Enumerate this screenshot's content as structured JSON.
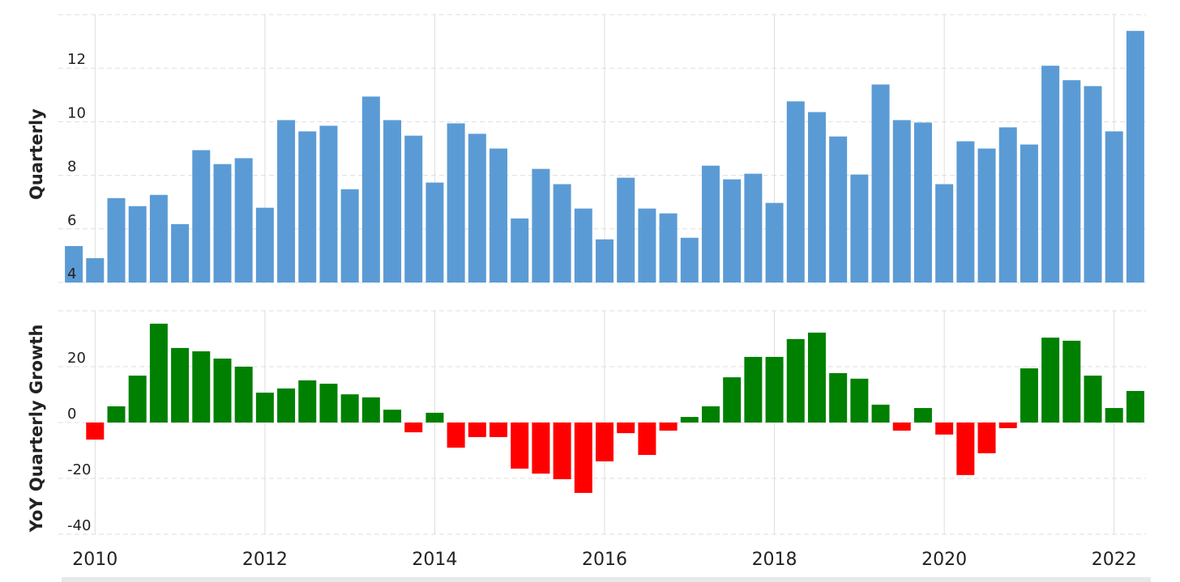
{
  "chart_data": [
    {
      "type": "bar",
      "y_label": "Quarterly",
      "color": "#5b9bd5",
      "grid": true,
      "x": [
        2009.75,
        2010.0,
        2010.25,
        2010.5,
        2010.75,
        2011.0,
        2011.25,
        2011.5,
        2011.75,
        2012.0,
        2012.25,
        2012.5,
        2012.75,
        2013.0,
        2013.25,
        2013.5,
        2013.75,
        2014.0,
        2014.25,
        2014.5,
        2014.75,
        2015.0,
        2015.25,
        2015.5,
        2015.75,
        2016.0,
        2016.25,
        2016.5,
        2016.75,
        2017.0,
        2017.25,
        2017.5,
        2017.75,
        2018.0,
        2018.25,
        2018.5,
        2018.75,
        2019.0,
        2019.25,
        2019.5,
        2019.75,
        2020.0,
        2020.25,
        2020.5,
        2020.75,
        2021.0,
        2021.25,
        2021.5,
        2021.75,
        2022.0,
        2022.25
      ],
      "values": [
        5.36,
        4.91,
        7.15,
        6.85,
        7.27,
        6.18,
        8.94,
        8.42,
        8.64,
        6.79,
        10.06,
        9.64,
        9.85,
        7.48,
        10.94,
        10.06,
        9.48,
        7.73,
        9.94,
        9.55,
        9.0,
        6.39,
        8.24,
        7.67,
        6.76,
        5.61,
        7.91,
        6.76,
        6.58,
        5.67,
        8.36,
        7.85,
        8.06,
        6.97,
        10.76,
        10.36,
        9.45,
        8.03,
        11.39,
        10.06,
        9.97,
        7.67,
        9.27,
        9.0,
        9.79,
        9.15,
        12.09,
        11.55,
        11.33,
        9.64,
        13.39
      ],
      "xlim": [
        2009.625,
        2022.375
      ],
      "xticks": [
        2010,
        2012,
        2014,
        2016,
        2018,
        2020,
        2022
      ],
      "ylim": [
        4,
        14
      ],
      "yticks": [
        4,
        6,
        8,
        10,
        12
      ]
    },
    {
      "type": "bar",
      "y_label": "YoY Quarterly Growth",
      "positive_color": "#008000",
      "negative_color": "#ff0000",
      "grid": true,
      "x": [
        2010.0,
        2010.25,
        2010.5,
        2010.75,
        2011.0,
        2011.25,
        2011.5,
        2011.75,
        2012.0,
        2012.25,
        2012.5,
        2012.75,
        2013.0,
        2013.25,
        2013.5,
        2013.75,
        2014.0,
        2014.25,
        2014.5,
        2014.75,
        2015.0,
        2015.25,
        2015.5,
        2015.75,
        2016.0,
        2016.25,
        2016.5,
        2016.75,
        2017.0,
        2017.25,
        2017.5,
        2017.75,
        2018.0,
        2018.25,
        2018.5,
        2018.75,
        2019.0,
        2019.25,
        2019.5,
        2019.75,
        2020.0,
        2020.25,
        2020.5,
        2020.75,
        2021.0,
        2021.25,
        2021.5,
        2021.75,
        2022.0,
        2022.25
      ],
      "values": [
        -6.1,
        5.8,
        16.8,
        35.4,
        26.7,
        25.5,
        22.9,
        20.0,
        10.7,
        12.2,
        15.1,
        13.9,
        10.1,
        9.0,
        4.6,
        -3.5,
        3.5,
        -9.0,
        -5.2,
        -5.2,
        -16.5,
        -18.3,
        -20.3,
        -25.2,
        -13.9,
        -3.8,
        -11.6,
        -2.9,
        2.0,
        5.8,
        16.2,
        23.5,
        23.5,
        29.9,
        32.2,
        17.7,
        15.7,
        6.4,
        -2.9,
        5.2,
        -4.3,
        -18.8,
        -11.0,
        -2.0,
        19.4,
        30.4,
        29.3,
        16.8,
        5.2,
        11.3
      ],
      "xlim": [
        2009.625,
        2022.375
      ],
      "xticks": [
        2010,
        2012,
        2014,
        2016,
        2018,
        2020,
        2022
      ],
      "ylim": [
        -40,
        40
      ],
      "yticks": [
        -40,
        -20,
        0,
        20
      ]
    }
  ]
}
